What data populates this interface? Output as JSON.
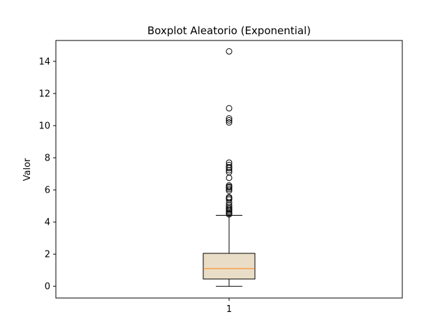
{
  "chart_data": {
    "type": "box",
    "title": "Boxplot Aleatorio (Exponential)",
    "xlabel": "",
    "ylabel": "Valor",
    "categories": [
      "1"
    ],
    "ylim": [
      -0.73,
      15.3
    ],
    "yticks": [
      0,
      2,
      4,
      6,
      8,
      10,
      12,
      14
    ],
    "grid": false,
    "box": {
      "min_whisker": 0.0,
      "q1": 0.45,
      "median": 1.1,
      "q3": 2.05,
      "max_whisker": 4.42,
      "fill_color": "#eaddc7",
      "median_color": "#ff7f0e"
    },
    "outliers": [
      14.62,
      11.08,
      10.45,
      10.33,
      10.2,
      7.7,
      7.55,
      7.42,
      7.35,
      7.22,
      7.1,
      6.75,
      6.28,
      6.2,
      6.15,
      6.05,
      5.95,
      5.55,
      5.48,
      5.4,
      5.2,
      5.05,
      4.95,
      4.85,
      4.78,
      4.7,
      4.62,
      4.55,
      4.48
    ]
  }
}
